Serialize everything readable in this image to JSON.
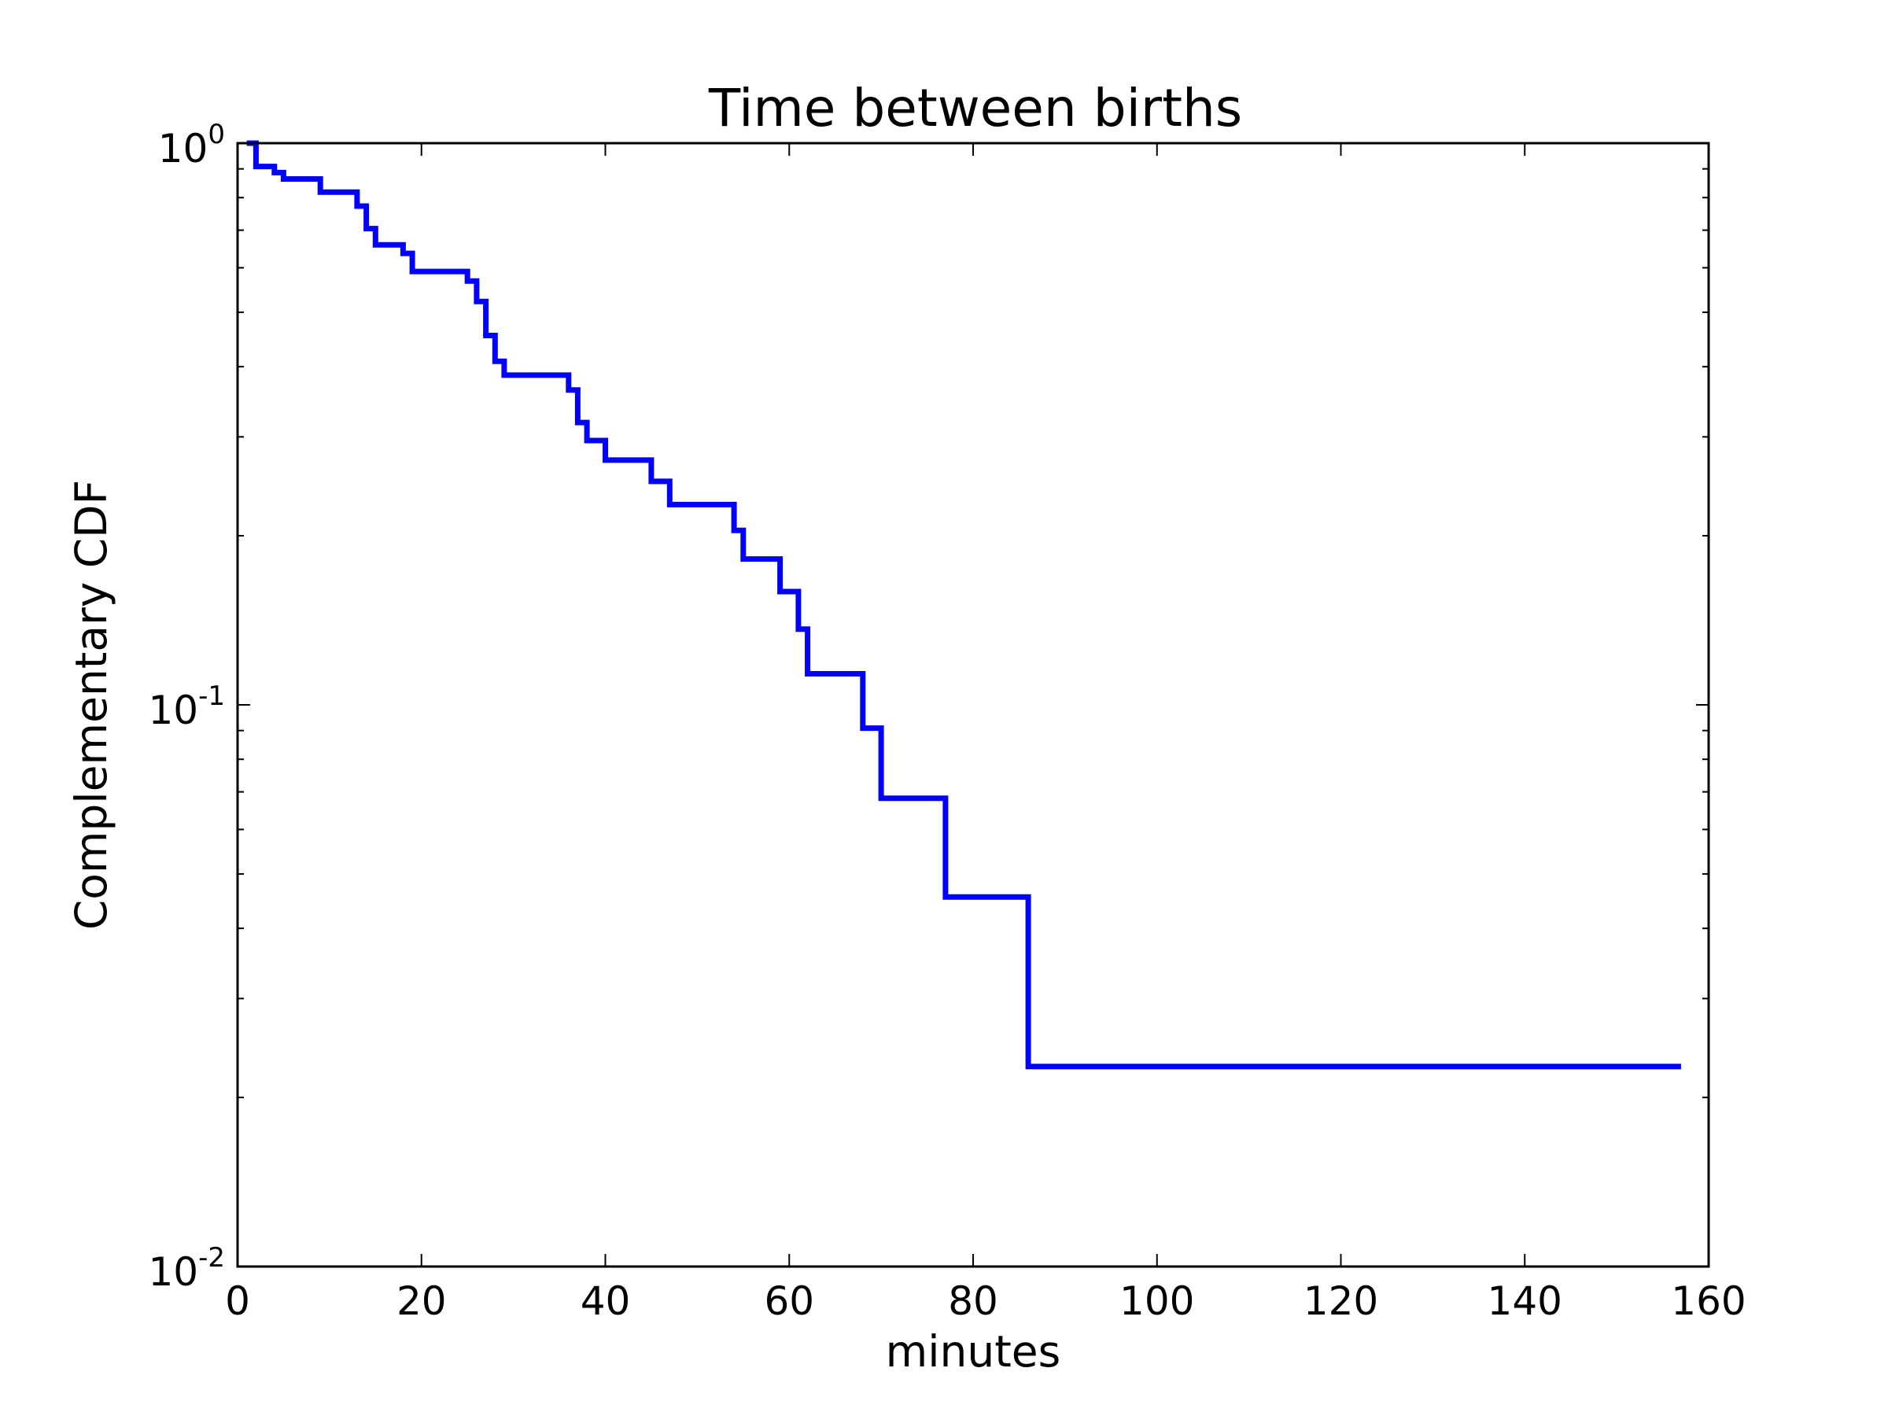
{
  "chart_data": {
    "type": "line",
    "title": "Time between births",
    "xlabel": "minutes",
    "ylabel": "Complementary CDF",
    "xlim": [
      0,
      160
    ],
    "ylim": [
      0.01,
      1
    ],
    "yscale": "log",
    "grid": false,
    "line_color": "#0000ff",
    "x_ticks": [
      0,
      20,
      40,
      60,
      80,
      100,
      120,
      140,
      160
    ],
    "y_ticks": [
      {
        "value": 1,
        "base": "10",
        "exp": "0"
      },
      {
        "value": 0.1,
        "base": "10",
        "exp": "-1"
      },
      {
        "value": 0.01,
        "base": "10",
        "exp": "-2"
      }
    ],
    "series": [
      {
        "step": true,
        "x": [
          1,
          2,
          4,
          5,
          9,
          13,
          14,
          15,
          18,
          19,
          25,
          26,
          27,
          28,
          29,
          36,
          37,
          38,
          40,
          45,
          47,
          54,
          55,
          59,
          61,
          62,
          68,
          70,
          77,
          86,
          157
        ],
        "y": [
          1.0,
          0.9091,
          0.8864,
          0.8636,
          0.8182,
          0.7727,
          0.7045,
          0.6591,
          0.6364,
          0.5909,
          0.5682,
          0.5227,
          0.4545,
          0.4091,
          0.3864,
          0.3636,
          0.3182,
          0.2955,
          0.2727,
          0.25,
          0.2273,
          0.2045,
          0.1818,
          0.1591,
          0.1364,
          0.1136,
          0.0909,
          0.0682,
          0.0455,
          0.0227,
          0.0227
        ]
      }
    ]
  }
}
